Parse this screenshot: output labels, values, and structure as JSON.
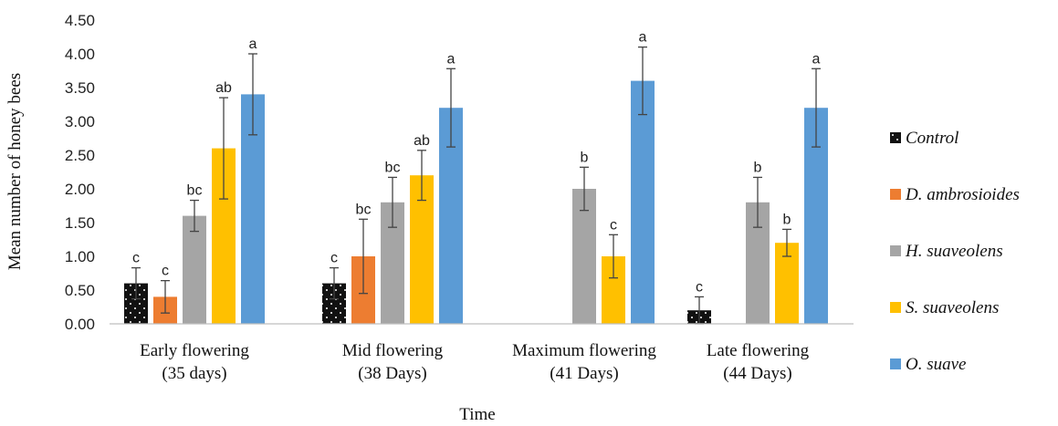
{
  "chart_data": {
    "type": "bar",
    "xlabel": "Time",
    "ylabel": "Mean number of honey bees",
    "ylim": [
      0,
      4.5
    ],
    "ytick_step": 0.5,
    "yticks": [
      "0.00",
      "0.50",
      "1.00",
      "1.50",
      "2.00",
      "2.50",
      "3.00",
      "3.50",
      "4.00",
      "4.50"
    ],
    "grid": false,
    "legend_position": "right",
    "categories": [
      [
        "Early flowering",
        "(35 days)"
      ],
      [
        "Mid flowering",
        "(38 Days)"
      ],
      [
        "Maximum flowering",
        "(41 Days)"
      ],
      [
        "Late flowering",
        "(44 Days)"
      ]
    ],
    "series": [
      {
        "name": "Control",
        "color": "#111111",
        "pattern": "dots",
        "values": [
          0.6,
          0.6,
          null,
          0.2
        ],
        "errors": [
          0.23,
          0.23,
          null,
          0.2
        ],
        "labels": [
          "c",
          "c",
          "",
          "c"
        ]
      },
      {
        "name": "D. ambrosioides",
        "color": "#ED7D31",
        "values": [
          0.4,
          1.0,
          null,
          null
        ],
        "errors": [
          0.24,
          0.55,
          null,
          null
        ],
        "labels": [
          "c",
          "bc",
          "",
          ""
        ]
      },
      {
        "name": "H. suaveolens",
        "color": "#A5A5A5",
        "values": [
          1.6,
          1.8,
          2.0,
          1.8
        ],
        "errors": [
          0.23,
          0.37,
          0.32,
          0.37
        ],
        "labels": [
          "bc",
          "bc",
          "b",
          "b"
        ]
      },
      {
        "name": "S. suaveolens",
        "color": "#FFC000",
        "values": [
          2.6,
          2.2,
          1.0,
          1.2
        ],
        "errors": [
          0.75,
          0.37,
          0.32,
          0.2
        ],
        "labels": [
          "ab",
          "ab",
          "c",
          "b"
        ]
      },
      {
        "name": "O. suave",
        "color": "#5B9BD5",
        "values": [
          3.4,
          3.2,
          3.6,
          3.2
        ],
        "errors": [
          0.6,
          0.58,
          0.5,
          0.58
        ],
        "labels": [
          "a",
          "a",
          "a",
          "a"
        ]
      }
    ]
  }
}
